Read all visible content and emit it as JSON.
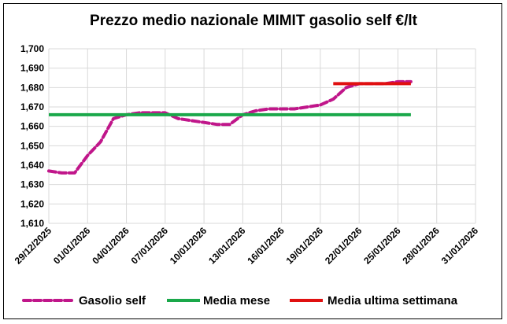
{
  "chart_data": {
    "type": "line",
    "title": "Prezzo medio nazionale MIMIT gasolio self €/lt",
    "ylim": [
      1.61,
      1.7
    ],
    "ytick_step": 0.01,
    "y_tick_labels": [
      "1,610",
      "1,620",
      "1,630",
      "1,640",
      "1,650",
      "1,660",
      "1,670",
      "1,680",
      "1,690",
      "1,700"
    ],
    "x_tick_labels": [
      "29/12/2025",
      "01/01/2026",
      "04/01/2026",
      "07/01/2026",
      "10/01/2026",
      "13/01/2026",
      "16/01/2026",
      "19/01/2026",
      "22/01/2026",
      "25/01/2026",
      "28/01/2026",
      "31/01/2026"
    ],
    "x_range_days": [
      0,
      33
    ],
    "series": [
      {
        "name": "Gasolio self",
        "color": "#c0168a",
        "style": "dashed",
        "x_days": [
          0,
          1,
          2,
          3,
          4,
          5,
          6,
          7,
          8,
          9,
          10,
          11,
          12,
          13,
          14,
          15,
          16,
          17,
          18,
          19,
          20,
          21,
          22,
          23,
          24,
          25,
          26,
          27,
          28
        ],
        "values": [
          1.637,
          1.636,
          1.636,
          1.645,
          1.652,
          1.664,
          1.666,
          1.667,
          1.667,
          1.667,
          1.664,
          1.663,
          1.662,
          1.661,
          1.661,
          1.666,
          1.668,
          1.669,
          1.669,
          1.669,
          1.67,
          1.671,
          1.674,
          1.68,
          1.682,
          1.682,
          1.682,
          1.683,
          1.683
        ]
      },
      {
        "name": "Media mese",
        "color": "#1aa84a",
        "style": "solid",
        "x_days": [
          0,
          28
        ],
        "values": [
          1.666,
          1.666
        ]
      },
      {
        "name": "Media ultima settimana",
        "color": "#e01010",
        "style": "solid",
        "x_days": [
          22,
          28
        ],
        "values": [
          1.682,
          1.682
        ]
      }
    ],
    "grid": true,
    "legend_position": "bottom"
  }
}
